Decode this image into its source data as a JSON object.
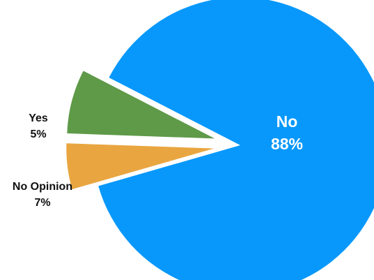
{
  "chart_data": {
    "type": "pie",
    "title": "",
    "slices": [
      {
        "label": "No",
        "value": 88,
        "display": "88%",
        "color": "#0898FB",
        "label_color": "#ffffff",
        "exploded": false
      },
      {
        "label": "Yes",
        "value": 5,
        "display": "5%",
        "color": "#E9A640",
        "label_color": "#111111",
        "exploded": true
      },
      {
        "label": "No Opinion",
        "value": 7,
        "display": "7%",
        "color": "#5E9A48",
        "label_color": "#111111",
        "exploded": true
      }
    ]
  }
}
